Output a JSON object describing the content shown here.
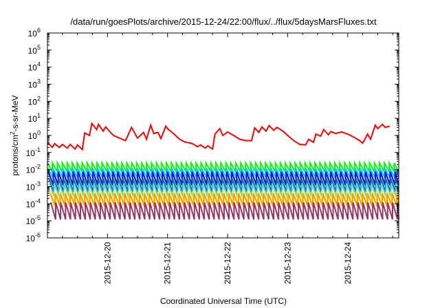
{
  "chart_data": {
    "type": "line",
    "title": "/data/run/goesPlots/archive/2015-12-24/22:00/flux/../flux/5daysMarsFluxes.txt",
    "xlabel": "Coordinated Universal Time (UTC)",
    "ylabel": "protons/cm²-s-sr-MeV",
    "ylabel_parts": {
      "before": "protons/cm",
      "sup": "2",
      "after": "-s-sr-MeV"
    },
    "yscale": "log",
    "ylim_exp": [
      -6,
      6
    ],
    "ytick_base": "10",
    "ytick_exponents": [
      "-6",
      "-5",
      "-4",
      "-3",
      "-2",
      "-1",
      "0",
      "1",
      "2",
      "3",
      "4",
      "5",
      "6"
    ],
    "xlim": [
      "2015-12-19 04:00",
      "2015-12-24 23:59"
    ],
    "xtick_labels": [
      "2015-12-20",
      "2015-12-21",
      "2015-12-22",
      "2015-12-23",
      "2015-12-24"
    ],
    "xtick_positions_days": [
      1,
      2,
      3,
      4,
      5
    ],
    "grid": false,
    "legend": "none",
    "red_series": {
      "color": "#ff0000",
      "x_days": [
        0.0,
        0.08,
        0.12,
        0.2,
        0.25,
        0.33,
        0.38,
        0.46,
        0.5,
        0.58,
        0.62,
        0.7,
        0.74,
        0.82,
        0.85,
        0.93,
        0.97,
        1.05,
        1.1,
        1.2,
        1.3,
        1.4,
        1.5,
        1.6,
        1.65,
        1.72,
        1.77,
        1.84,
        1.89,
        1.97,
        2.0,
        2.1,
        2.2,
        2.3,
        2.4,
        2.5,
        2.55,
        2.63,
        2.67,
        2.75,
        2.79,
        2.87,
        2.92,
        3.0,
        3.1,
        3.2,
        3.3,
        3.4,
        3.45,
        3.52,
        3.57,
        3.64,
        3.69,
        3.77,
        3.82,
        3.92,
        4.0,
        4.1,
        4.2,
        4.3,
        4.35,
        4.43,
        4.47,
        4.55,
        4.6,
        4.68,
        4.72,
        4.8,
        4.9,
        5.0,
        5.1,
        5.2,
        5.25,
        5.33,
        5.38,
        5.46,
        5.5,
        5.58,
        5.62,
        5.7
      ],
      "y": [
        0.4,
        0.2,
        0.33,
        0.2,
        0.3,
        0.18,
        0.3,
        0.16,
        0.28,
        0.15,
        1.4,
        1.0,
        5.0,
        2.2,
        4.5,
        1.8,
        3.2,
        1.5,
        1.0,
        0.7,
        0.5,
        3.0,
        0.7,
        1.5,
        0.6,
        4.0,
        1.3,
        1.5,
        0.65,
        3.5,
        2.5,
        1.3,
        0.6,
        0.4,
        0.35,
        0.22,
        0.28,
        0.18,
        0.25,
        0.16,
        1.2,
        2.5,
        1.0,
        1.6,
        1.0,
        0.6,
        0.5,
        0.5,
        2.8,
        1.5,
        3.2,
        1.8,
        3.8,
        2.0,
        3.0,
        1.8,
        1.0,
        0.5,
        0.3,
        0.28,
        0.6,
        0.4,
        1.2,
        0.9,
        2.2,
        1.1,
        1.7,
        1.3,
        1.6,
        1.2,
        0.8,
        0.5,
        0.35,
        1.2,
        0.6,
        4.0,
        2.5,
        4.5,
        3.0,
        3.5
      ]
    },
    "band_series": [
      {
        "color": "#00ff00",
        "peak": 0.025,
        "trough": 0.0075
      },
      {
        "color": "#00ccff",
        "peak": 0.012,
        "trough": 0.0035
      },
      {
        "color": "#0000ff",
        "peak": 0.0075,
        "trough": 0.0012
      },
      {
        "color": "#008080",
        "peak": 0.003,
        "trough": 0.0005
      },
      {
        "color": "#66ccff",
        "peak": 0.0015,
        "trough": 0.00025
      },
      {
        "color": "#ffff00",
        "peak": 0.0006,
        "trough": 9e-05
      },
      {
        "color": "#ff9900",
        "peak": 0.0004,
        "trough": 7e-05
      },
      {
        "color": "#993366",
        "peak": 0.00012,
        "trough": 1.2e-05
      }
    ],
    "band_period_days": 0.0825
  }
}
